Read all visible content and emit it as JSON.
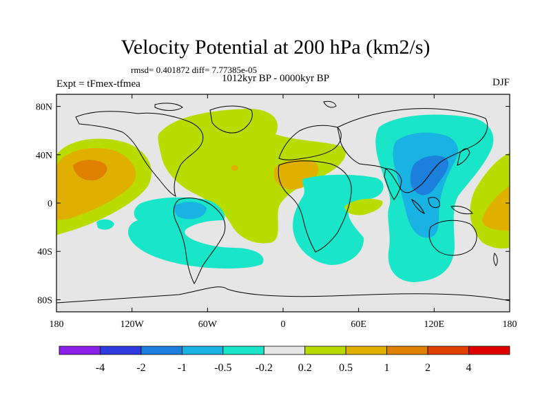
{
  "title": "Velocity Potential at 200 hPa (km2/s)",
  "stats": "rmsd= 0.401872 diff= 7.77385e-05",
  "experiment": "Expt = tFmex-tfmea",
  "period": "1012kyr BP - 0000kyr BP",
  "season": "DJF",
  "lat_labels": [
    {
      "value": 80,
      "label": "80N"
    },
    {
      "value": 40,
      "label": "40N"
    },
    {
      "value": 0,
      "label": "0"
    },
    {
      "value": -40,
      "label": "40S"
    },
    {
      "value": -80,
      "label": "80S"
    }
  ],
  "lon_labels": [
    {
      "value": -180,
      "label": "180"
    },
    {
      "value": -120,
      "label": "120W"
    },
    {
      "value": -60,
      "label": "60W"
    },
    {
      "value": 0,
      "label": "0"
    },
    {
      "value": 60,
      "label": "60E"
    },
    {
      "value": 120,
      "label": "120E"
    },
    {
      "value": 180,
      "label": "180"
    }
  ],
  "colorbar": {
    "colors": [
      "#8b20e8",
      "#2f3adf",
      "#1c7fdc",
      "#18b3e3",
      "#19e6c8",
      "#e6e6e6",
      "#b8dc00",
      "#e0b000",
      "#e08000",
      "#e04000",
      "#e00000"
    ],
    "labels": [
      "-4",
      "-2",
      "-1",
      "-0.5",
      "-0.2",
      "0.2",
      "0.5",
      "1",
      "2",
      "4"
    ]
  },
  "colors": {
    "neutral": "#e6e6e6",
    "pos_02": "#b8dc00",
    "pos_05": "#e0b000",
    "pos_1": "#e08000",
    "neg_02": "#19e6c8",
    "neg_05": "#18b3e3",
    "neg_1": "#1c7fdc"
  }
}
